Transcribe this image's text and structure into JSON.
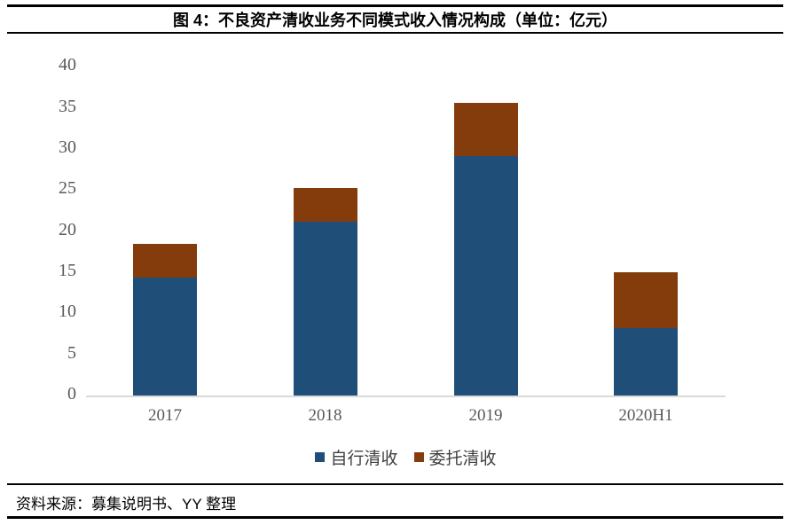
{
  "figure": {
    "title": "图 4：不良资产清收业务不同模式收入情况构成（单位：亿元）",
    "source": "资料来源：募集说明书、YY 整理"
  },
  "colors": {
    "self_collection_blue": "#1F4E79",
    "entrusted_collection_brown": "#843C0C",
    "axis_line_gray": "#D9D9D9",
    "tick_label_gray": "#595959",
    "rule_black": "#000000"
  },
  "chart_data": {
    "type": "bar",
    "stacked": true,
    "title": "图 4：不良资产清收业务不同模式收入情况构成（单位：亿元）",
    "unit": "亿元",
    "categories": [
      "2017",
      "2018",
      "2019",
      "2020H1"
    ],
    "series": [
      {
        "name": "自行清收",
        "color": "#1F4E79",
        "values": [
          14.4,
          21.1,
          29.1,
          8.2
        ]
      },
      {
        "name": "委托清收",
        "color": "#843C0C",
        "values": [
          4.0,
          4.1,
          6.5,
          6.8
        ]
      }
    ],
    "totals": [
      18.4,
      25.2,
      35.6,
      15.0
    ],
    "xlabel": "",
    "ylabel": "",
    "ylim": [
      0,
      40
    ],
    "y_ticks": [
      0,
      5,
      10,
      15,
      20,
      25,
      30,
      35,
      40
    ],
    "grid": false,
    "legend_position": "bottom-center"
  }
}
